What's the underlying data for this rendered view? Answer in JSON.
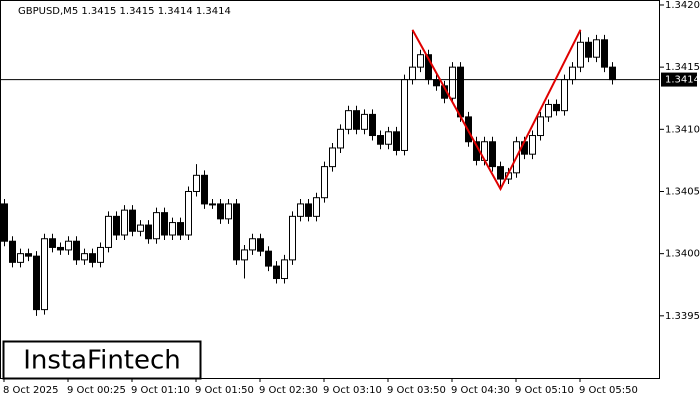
{
  "chart_data": {
    "type": "candlestick",
    "title": "GBPUSD,M5  1.3415 1.3415 1.3414 1.3414",
    "logo": "InstaFintech",
    "categories": [
      "8 Oct 2025",
      null,
      null,
      null,
      null,
      null,
      null,
      null,
      "9 Oct 00:25",
      null,
      null,
      null,
      null,
      null,
      null,
      null,
      "9 Oct 01:10",
      null,
      null,
      null,
      null,
      null,
      null,
      null,
      "9 Oct 01:50",
      null,
      null,
      null,
      null,
      null,
      null,
      null,
      "9 Oct 02:30",
      null,
      null,
      null,
      null,
      null,
      null,
      null,
      "9 Oct 03:10",
      null,
      null,
      null,
      null,
      null,
      null,
      null,
      "9 Oct 03:50",
      null,
      null,
      null,
      null,
      null,
      null,
      null,
      "9 Oct 04:30",
      null,
      null,
      null,
      null,
      null,
      null,
      null,
      "9 Oct 05:10",
      null,
      null,
      null,
      null,
      null,
      null,
      null,
      "9 Oct 05:50",
      null,
      null,
      null,
      null
    ],
    "open": [
      1.3404,
      1.3401,
      1.33993,
      1.34,
      1.33998,
      1.33955,
      1.34012,
      1.34005,
      1.34003,
      1.3401,
      1.33995,
      1.34,
      1.33993,
      1.34005,
      1.3403,
      1.34015,
      1.34035,
      1.34018,
      1.34023,
      1.34012,
      1.34033,
      1.34015,
      1.34025,
      1.34015,
      1.3405,
      1.34063,
      1.3404,
      1.3404,
      1.34028,
      1.3404,
      1.33995,
      1.34003,
      1.34012,
      1.34002,
      1.3399,
      1.3398,
      1.33995,
      1.3403,
      1.3404,
      1.3403,
      1.34045,
      1.3407,
      1.34085,
      1.341,
      1.34115,
      1.341,
      1.34112,
      1.34095,
      1.34088,
      1.34098,
      1.34083,
      1.3414,
      1.3415,
      1.3416,
      1.3414,
      1.34135,
      1.34125,
      1.3415,
      1.3411,
      1.3409,
      1.34075,
      1.3409,
      1.3407,
      1.3406,
      1.34065,
      1.3409,
      1.3408,
      1.34095,
      1.3411,
      1.3412,
      1.34115,
      1.3414,
      1.3415,
      1.3417,
      1.34158,
      1.34172,
      1.3415
    ],
    "high": [
      1.34044,
      1.34014,
      1.34004,
      1.34004,
      1.34002,
      1.34016,
      1.34016,
      1.34009,
      1.34014,
      1.34014,
      1.34004,
      1.34004,
      1.34009,
      1.34034,
      1.34034,
      1.34039,
      1.34039,
      1.34027,
      1.34027,
      1.34037,
      1.34037,
      1.34029,
      1.34029,
      1.34054,
      1.34072,
      1.34067,
      1.34044,
      1.34044,
      1.34044,
      1.34044,
      1.34007,
      1.34016,
      1.34016,
      1.34006,
      1.33994,
      1.33999,
      1.34034,
      1.34044,
      1.34044,
      1.34049,
      1.34074,
      1.34089,
      1.34104,
      1.34119,
      1.34119,
      1.34116,
      1.34116,
      1.34099,
      1.34102,
      1.34102,
      1.34144,
      1.3418,
      1.34164,
      1.34164,
      1.34144,
      1.34139,
      1.34154,
      1.34154,
      1.34114,
      1.34094,
      1.34094,
      1.34094,
      1.34074,
      1.34069,
      1.34094,
      1.34094,
      1.34099,
      1.34114,
      1.34124,
      1.34124,
      1.34144,
      1.34154,
      1.3418,
      1.34174,
      1.34176,
      1.34176,
      1.34154
    ],
    "low": [
      1.34006,
      1.33989,
      1.33989,
      1.33994,
      1.3395,
      1.33951,
      1.34001,
      1.33999,
      1.33999,
      1.33991,
      1.33991,
      1.33989,
      1.33989,
      1.34001,
      1.34011,
      1.34011,
      1.34014,
      1.34014,
      1.34008,
      1.34008,
      1.34011,
      1.34011,
      1.34011,
      1.34011,
      1.34046,
      1.34036,
      1.34036,
      1.34024,
      1.34024,
      1.33991,
      1.3398,
      1.33999,
      1.33998,
      1.33986,
      1.33976,
      1.33976,
      1.33991,
      1.34026,
      1.34026,
      1.34026,
      1.34041,
      1.34066,
      1.34081,
      1.34096,
      1.34096,
      1.34096,
      1.34091,
      1.34084,
      1.34084,
      1.34079,
      1.34079,
      1.34136,
      1.34146,
      1.34136,
      1.34131,
      1.34121,
      1.34121,
      1.34106,
      1.34086,
      1.34071,
      1.34071,
      1.34066,
      1.34052,
      1.34056,
      1.34061,
      1.34076,
      1.34076,
      1.34091,
      1.34106,
      1.34111,
      1.34111,
      1.34136,
      1.34146,
      1.34154,
      1.34154,
      1.34146,
      1.34136
    ],
    "close": [
      1.3401,
      1.33993,
      1.34,
      1.33998,
      1.33955,
      1.34012,
      1.34005,
      1.34003,
      1.3401,
      1.33995,
      1.34,
      1.33993,
      1.34005,
      1.3403,
      1.34015,
      1.34035,
      1.34018,
      1.34023,
      1.34012,
      1.34033,
      1.34015,
      1.34025,
      1.34015,
      1.3405,
      1.34063,
      1.3404,
      1.3404,
      1.34028,
      1.3404,
      1.33995,
      1.34003,
      1.34012,
      1.34002,
      1.3399,
      1.3398,
      1.33995,
      1.3403,
      1.3404,
      1.3403,
      1.34045,
      1.3407,
      1.34085,
      1.341,
      1.34115,
      1.341,
      1.34112,
      1.34095,
      1.34088,
      1.34098,
      1.34083,
      1.3414,
      1.3415,
      1.3416,
      1.3414,
      1.34135,
      1.34125,
      1.3415,
      1.3411,
      1.3409,
      1.34075,
      1.3409,
      1.3407,
      1.3406,
      1.34065,
      1.3409,
      1.3408,
      1.34095,
      1.3411,
      1.3412,
      1.34115,
      1.3414,
      1.3415,
      1.3417,
      1.34158,
      1.34172,
      1.3415,
      1.3414
    ],
    "up_color": "#ffffff",
    "down_color": "#000000",
    "current_price": 1.3414,
    "pattern": {
      "color": "#e00000",
      "x": [
        51,
        62,
        72
      ],
      "y": [
        1.3418,
        1.34052,
        1.3418
      ]
    },
    "ylim": [
      1.339,
      1.34204
    ],
    "yticks": [
      {
        "value": 1.342,
        "label": "1.3420"
      },
      1.3415,
      {
        "value": 1.341,
        "label": "1.3410"
      },
      1.3405,
      {
        "value": 1.34,
        "label": "1.3400"
      },
      1.3395
    ]
  }
}
